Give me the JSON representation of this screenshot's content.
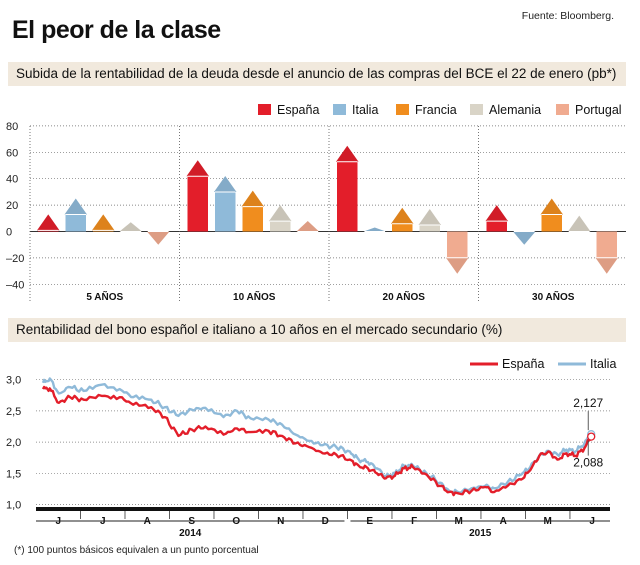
{
  "title": "El peor de la clase",
  "source": "Fuente: Bloomberg.",
  "footnote": "(*) 100 puntos básicos equivalen a un punto porcentual",
  "colors": {
    "España": "#e31e2a",
    "Italia": "#8fbad9",
    "Francia": "#f08d1e",
    "Alemania": "#d9d4c7",
    "Portugal": "#f0ab90",
    "section_bg": "#f1e9dd"
  },
  "chart_data": [
    {
      "type": "bar",
      "title": "Subida de la rentabilidad de la deuda desde el anuncio de las compras del BCE el 22 de enero (pb*)",
      "categories": [
        "5 AÑOS",
        "10 AÑOS",
        "20 AÑOS",
        "30 AÑOS"
      ],
      "series": [
        {
          "name": "España",
          "values": [
            13,
            54,
            65,
            20
          ]
        },
        {
          "name": "Italia",
          "values": [
            25,
            42,
            3,
            -10
          ]
        },
        {
          "name": "Francia",
          "values": [
            13,
            31,
            18,
            25
          ]
        },
        {
          "name": "Alemania",
          "values": [
            7,
            20,
            17,
            12
          ]
        },
        {
          "name": "Portugal",
          "values": [
            -10,
            8,
            -32,
            -32
          ]
        }
      ],
      "ylim": [
        -40,
        80
      ],
      "yticks": [
        80,
        60,
        40,
        20,
        0,
        -20,
        -40
      ],
      "ytick_labels": [
        "80",
        "60",
        "40",
        "20",
        "0",
        "–20",
        "–40"
      ],
      "legend": "top-right"
    },
    {
      "type": "line",
      "title": "Rentabilidad del bono español e italiano a 10 años en el mercado secundario (%)",
      "x_labels": [
        "J",
        "J",
        "A",
        "S",
        "O",
        "N",
        "D",
        "E",
        "F",
        "M",
        "A",
        "M",
        "J"
      ],
      "year_labels": [
        "2014",
        "2015"
      ],
      "ylim": [
        1.0,
        3.0
      ],
      "yticks": [
        3.0,
        2.5,
        2.0,
        1.5,
        1.0
      ],
      "ytick_labels": [
        "3,0",
        "2,5",
        "2,0",
        "1,5",
        "1,0"
      ],
      "legend": "top-right",
      "annotations": [
        {
          "series": "Italia",
          "label": "2,127",
          "value": 2.127
        },
        {
          "series": "España",
          "label": "2,088",
          "value": 2.088
        }
      ],
      "series": [
        {
          "name": "España",
          "t": [
            0,
            0.15,
            0.35,
            0.6,
            0.9,
            1.3,
            1.7,
            2.0,
            2.4,
            2.7,
            3.0,
            3.3,
            3.6,
            4.0,
            4.3,
            4.6,
            5.0,
            5.3,
            5.6,
            5.9,
            6.2,
            6.5,
            6.8,
            7.0,
            7.2,
            7.4,
            7.6,
            7.8,
            8.0,
            8.2,
            8.5,
            8.8,
            9.0,
            9.2,
            9.5,
            9.8,
            10.0,
            10.3,
            10.6,
            10.8,
            11.0,
            11.2,
            11.4,
            11.6,
            11.8,
            12.0,
            12.15
          ],
          "values": [
            2.85,
            2.86,
            2.63,
            2.72,
            2.68,
            2.74,
            2.72,
            2.6,
            2.56,
            2.4,
            2.1,
            2.2,
            2.25,
            2.12,
            2.22,
            2.16,
            2.18,
            2.1,
            1.98,
            1.92,
            1.82,
            1.8,
            1.72,
            1.62,
            1.58,
            1.5,
            1.42,
            1.46,
            1.58,
            1.6,
            1.48,
            1.3,
            1.2,
            1.18,
            1.22,
            1.28,
            1.2,
            1.3,
            1.4,
            1.55,
            1.78,
            1.85,
            1.72,
            1.82,
            1.78,
            1.9,
            2.088
          ]
        },
        {
          "name": "Italia",
          "t": [
            0,
            0.15,
            0.35,
            0.6,
            0.9,
            1.3,
            1.7,
            2.0,
            2.4,
            2.7,
            3.0,
            3.3,
            3.6,
            4.0,
            4.3,
            4.6,
            5.0,
            5.3,
            5.6,
            5.9,
            6.2,
            6.5,
            6.8,
            7.0,
            7.2,
            7.4,
            7.6,
            7.8,
            8.0,
            8.2,
            8.5,
            8.8,
            9.0,
            9.2,
            9.5,
            9.8,
            10.0,
            10.3,
            10.6,
            10.8,
            11.0,
            11.2,
            11.4,
            11.6,
            11.8,
            12.0,
            12.15
          ],
          "values": [
            2.95,
            3.02,
            2.78,
            2.88,
            2.82,
            2.92,
            2.85,
            2.72,
            2.68,
            2.56,
            2.42,
            2.52,
            2.55,
            2.4,
            2.5,
            2.38,
            2.36,
            2.28,
            2.12,
            2.02,
            1.95,
            1.92,
            1.85,
            1.72,
            1.68,
            1.58,
            1.45,
            1.5,
            1.62,
            1.62,
            1.5,
            1.35,
            1.22,
            1.2,
            1.26,
            1.3,
            1.26,
            1.36,
            1.48,
            1.6,
            1.78,
            1.86,
            1.8,
            1.88,
            1.85,
            1.98,
            2.127
          ]
        }
      ]
    }
  ]
}
